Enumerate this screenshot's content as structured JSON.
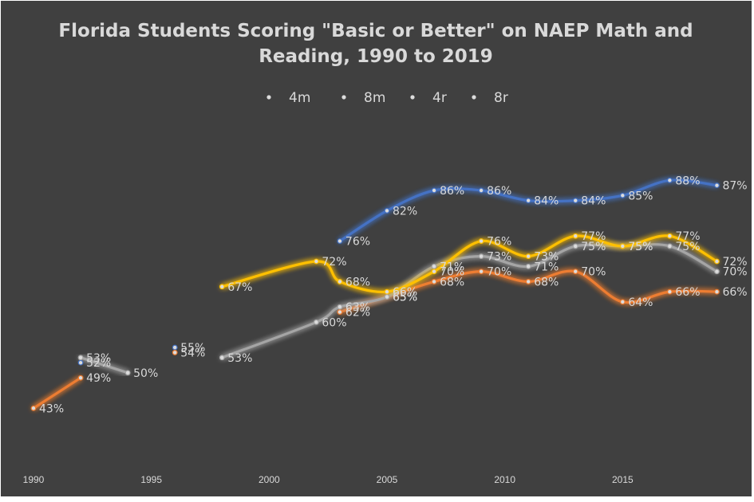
{
  "chart_data": {
    "type": "line",
    "title": "Florida Students Scoring \"Basic or Better\" on NAEP Math and Reading, 1990 to 2019",
    "title_lines": [
      "Florida Students Scoring \"Basic or Better\" on NAEP Math and",
      "Reading, 1990 to 2019"
    ],
    "xlabel": "",
    "ylabel": "",
    "xlim": [
      1990,
      2020
    ],
    "ylim": [
      30,
      100
    ],
    "x_ticks": [
      1990,
      1995,
      2000,
      2005,
      2010,
      2015
    ],
    "grid": false,
    "legend_position": "top",
    "background_color": "#404040",
    "series": [
      {
        "name": "4m",
        "color": "#4472c4",
        "segments": [
          [
            {
              "x": 1992,
              "y": 52
            }
          ],
          [
            {
              "x": 1996,
              "y": 55
            }
          ],
          [
            {
              "x": 2003,
              "y": 76
            },
            {
              "x": 2005,
              "y": 82
            },
            {
              "x": 2007,
              "y": 86
            },
            {
              "x": 2009,
              "y": 86
            },
            {
              "x": 2011,
              "y": 84
            },
            {
              "x": 2013,
              "y": 84
            },
            {
              "x": 2015,
              "y": 85
            },
            {
              "x": 2017,
              "y": 88
            },
            {
              "x": 2019,
              "y": 87
            }
          ]
        ]
      },
      {
        "name": "8m",
        "color": "#ed7d31",
        "segments": [
          [
            {
              "x": 1990,
              "y": 43
            },
            {
              "x": 1992,
              "y": 49
            }
          ],
          [
            {
              "x": 1996,
              "y": 54
            }
          ],
          [
            {
              "x": 2003,
              "y": 62
            },
            {
              "x": 2005,
              "y": 65
            },
            {
              "x": 2007,
              "y": 68
            },
            {
              "x": 2009,
              "y": 70
            },
            {
              "x": 2011,
              "y": 68
            },
            {
              "x": 2013,
              "y": 70
            },
            {
              "x": 2015,
              "y": 64
            },
            {
              "x": 2017,
              "y": 66
            },
            {
              "x": 2019,
              "y": 66
            }
          ]
        ]
      },
      {
        "name": "4r",
        "color": "#a5a5a5",
        "segments": [
          [
            {
              "x": 1992,
              "y": 53
            },
            {
              "x": 1994,
              "y": 50
            }
          ],
          [
            {
              "x": 1998,
              "y": 53
            },
            {
              "x": 2002,
              "y": 60
            },
            {
              "x": 2003,
              "y": 63
            },
            {
              "x": 2005,
              "y": 65
            },
            {
              "x": 2007,
              "y": 71
            },
            {
              "x": 2009,
              "y": 73
            },
            {
              "x": 2011,
              "y": 71
            },
            {
              "x": 2013,
              "y": 75
            },
            {
              "x": 2015,
              "y": 75
            },
            {
              "x": 2017,
              "y": 75
            },
            {
              "x": 2019,
              "y": 70
            }
          ]
        ]
      },
      {
        "name": "8r",
        "color": "#ffc000",
        "segments": [
          [
            {
              "x": 1998,
              "y": 67
            },
            {
              "x": 2002,
              "y": 72
            },
            {
              "x": 2003,
              "y": 68
            },
            {
              "x": 2005,
              "y": 66
            },
            {
              "x": 2007,
              "y": 70
            },
            {
              "x": 2009,
              "y": 76
            },
            {
              "x": 2011,
              "y": 73
            },
            {
              "x": 2013,
              "y": 77
            },
            {
              "x": 2015,
              "y": 75
            },
            {
              "x": 2017,
              "y": 77
            },
            {
              "x": 2019,
              "y": 72
            }
          ]
        ]
      }
    ]
  }
}
